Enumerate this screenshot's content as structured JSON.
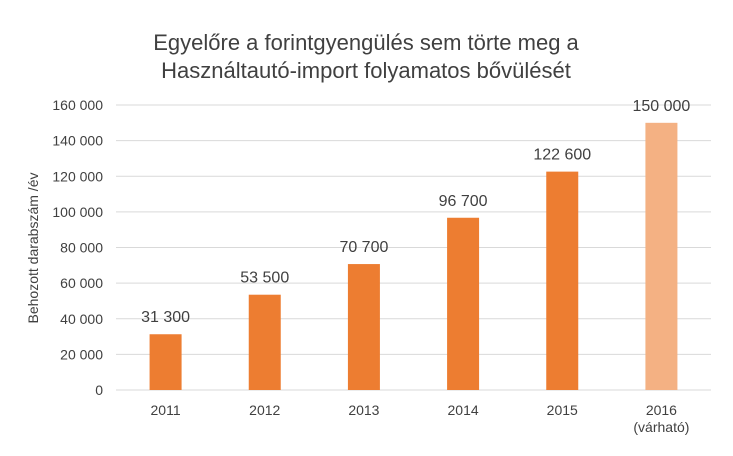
{
  "chart_data": {
    "type": "bar",
    "title": [
      "Egyelőre a forintgyengülés sem törte meg a",
      "Használtautó-import folyamatos bővülését"
    ],
    "ylabel": "Behozott darabszám /év",
    "xlabel": "",
    "ylim": [
      0,
      160000
    ],
    "yticks": [
      "0",
      "20 000",
      "40 000",
      "60 000",
      "80 000",
      "100 000",
      "120 000",
      "140 000",
      "160 000"
    ],
    "ytick_values": [
      0,
      20000,
      40000,
      60000,
      80000,
      100000,
      120000,
      140000,
      160000
    ],
    "categories": [
      [
        "2011"
      ],
      [
        "2012"
      ],
      [
        "2013"
      ],
      [
        "2014"
      ],
      [
        "2015"
      ],
      [
        "2016",
        "(várható)"
      ]
    ],
    "values": [
      31300,
      53500,
      70700,
      96700,
      122600,
      150000
    ],
    "data_labels": [
      "31 300",
      "53 500",
      "70 700",
      "96 700",
      "122 600",
      "150 000"
    ],
    "colors": [
      "#ed7d31",
      "#ed7d31",
      "#ed7d31",
      "#ed7d31",
      "#ed7d31",
      "#f4b183"
    ],
    "grid": true,
    "legend": "none"
  }
}
